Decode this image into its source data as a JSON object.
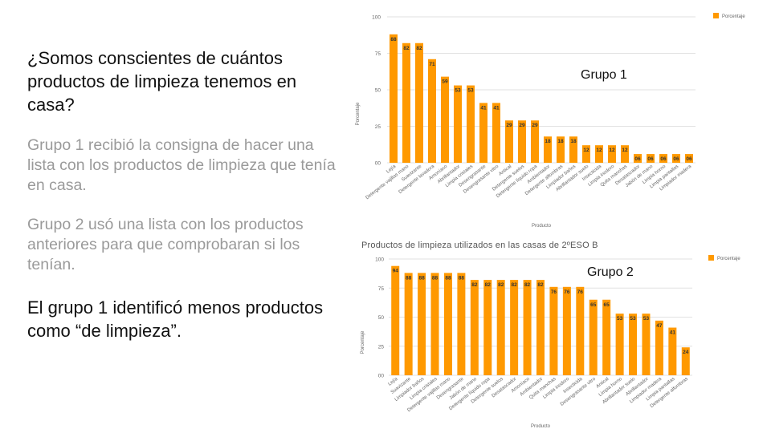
{
  "slide": {
    "title": "¿Somos conscientes de cuántos productos de limpieza tenemos en casa?",
    "paragraph_group1": "Grupo 1 recibió la consigna de hacer una lista con los productos de limpieza que tenía en casa.",
    "paragraph_group2": "Grupo 2 usó una lista con los productos anteriores para que comprobaran si los tenían.",
    "conclusion": "El grupo 1 identificó menos productos como “de limpieza”."
  },
  "colors": {
    "bar": "#ff9900",
    "grid": "#e2e2e2",
    "axis_text": "#666666",
    "label_text": "#333333"
  },
  "chart_data": [
    {
      "type": "bar",
      "title": "",
      "annotation": "Grupo 1",
      "xlabel": "Producto",
      "ylabel": "Porcentaje",
      "legend": "Porcentaje",
      "legend_position": "top-right",
      "ylim": [
        0,
        100
      ],
      "yticks": [
        "00",
        "25",
        "50",
        "75",
        "100"
      ],
      "grid": true,
      "categories": [
        "Lejía",
        "Detergente vajillas mano",
        "Suavizante",
        "Detergente lavadora",
        "Amoníaco",
        "Abrillantador",
        "Limpia cristales",
        "Desengrasante",
        "Desengrasante vitro",
        "Antical",
        "Detergente suelos",
        "Detergente líquido ropa",
        "Ambientador",
        "Detergente alfombras",
        "Limpiador baños",
        "Abrillantador suelo",
        "Insecticida",
        "Limpia inodoro",
        "Quita manchas",
        "Desatascador",
        "Jabón de mano",
        "Limpia horno",
        "Limpia pantallas",
        "Limpiador madera"
      ],
      "values": [
        88,
        82,
        82,
        71,
        59,
        53,
        53,
        41,
        41,
        29,
        29,
        29,
        18,
        18,
        18,
        12,
        12,
        12,
        12,
        6,
        6,
        6,
        6,
        6
      ],
      "value_labels": [
        "88",
        "82",
        "82",
        "71",
        "59",
        "53",
        "53",
        "41",
        "41",
        "29",
        "29",
        "29",
        "18",
        "18",
        "18",
        "12",
        "12",
        "12",
        "12",
        "06",
        "06",
        "06",
        "06",
        "06"
      ]
    },
    {
      "type": "bar",
      "title": "Productos de limpieza utilizados en las casas de 2ºESO B",
      "annotation": "Grupo 2",
      "xlabel": "Producto",
      "ylabel": "Porcentaje",
      "legend": "Porcentaje",
      "legend_position": "top-right",
      "ylim": [
        0,
        100
      ],
      "yticks": [
        "00",
        "25",
        "50",
        "75",
        "100"
      ],
      "grid": true,
      "categories": [
        "Lejía",
        "Suavizante",
        "Limpiador baños",
        "Limpia cristales",
        "Detergente vajillas mano",
        "Desengrasante",
        "Jabón de mano",
        "Detergente líquido ropa",
        "Detergente suelos",
        "Desatascador",
        "Amoníaco",
        "Ambientador",
        "Quita manchas",
        "Limpia inodoro",
        "Insecticida",
        "Desengrasante vitro",
        "Antical",
        "Limpia horno",
        "Abrillantador suelo",
        "Abrillantador",
        "Limpiador madera",
        "Limpia pantallas",
        "Detergente alfombras"
      ],
      "values": [
        94,
        88,
        88,
        88,
        88,
        88,
        82,
        82,
        82,
        82,
        82,
        82,
        76,
        76,
        76,
        65,
        65,
        53,
        53,
        53,
        47,
        41,
        24
      ],
      "value_labels": [
        "94",
        "88",
        "88",
        "88",
        "88",
        "88",
        "82",
        "82",
        "82",
        "82",
        "82",
        "82",
        "76",
        "76",
        "76",
        "65",
        "65",
        "53",
        "53",
        "53",
        "47",
        "41",
        "24"
      ]
    }
  ]
}
